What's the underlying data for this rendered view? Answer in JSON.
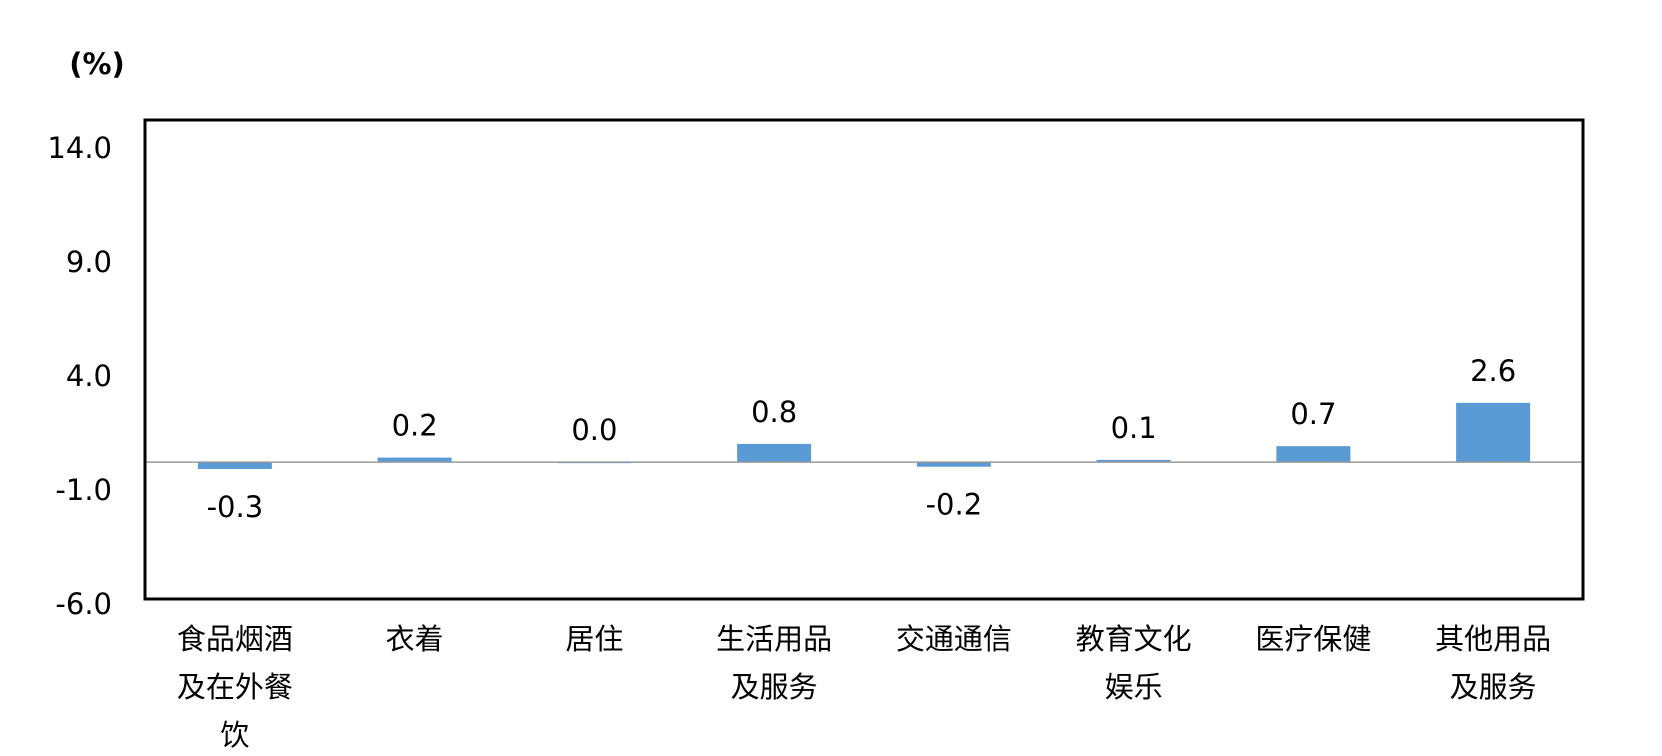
{
  "chart_data": {
    "type": "bar",
    "y_label": "(%)",
    "categories": [
      "食品烟酒及在外餐饮",
      "衣着",
      "居住",
      "生活用品及服务",
      "交通通信",
      "教育文化娱乐",
      "医疗保健",
      "其他用品及服务"
    ],
    "values": [
      -0.3,
      0.2,
      0.0,
      0.8,
      -0.2,
      0.1,
      0.7,
      2.6
    ],
    "value_labels": [
      "-0.3",
      "0.2",
      "0.0",
      "0.8",
      "-0.2",
      "0.1",
      "0.7",
      "2.6"
    ],
    "color": "#5b9bd5",
    "ylim": [
      -6,
      15
    ],
    "yticks": [
      {
        "value": -6,
        "label": "-6.0"
      },
      {
        "value": -1,
        "label": "-1.0"
      },
      {
        "value": 4,
        "label": "4.0"
      },
      {
        "value": 9,
        "label": "9.0"
      },
      {
        "value": 14,
        "label": "14.0"
      }
    ],
    "grid": false
  }
}
